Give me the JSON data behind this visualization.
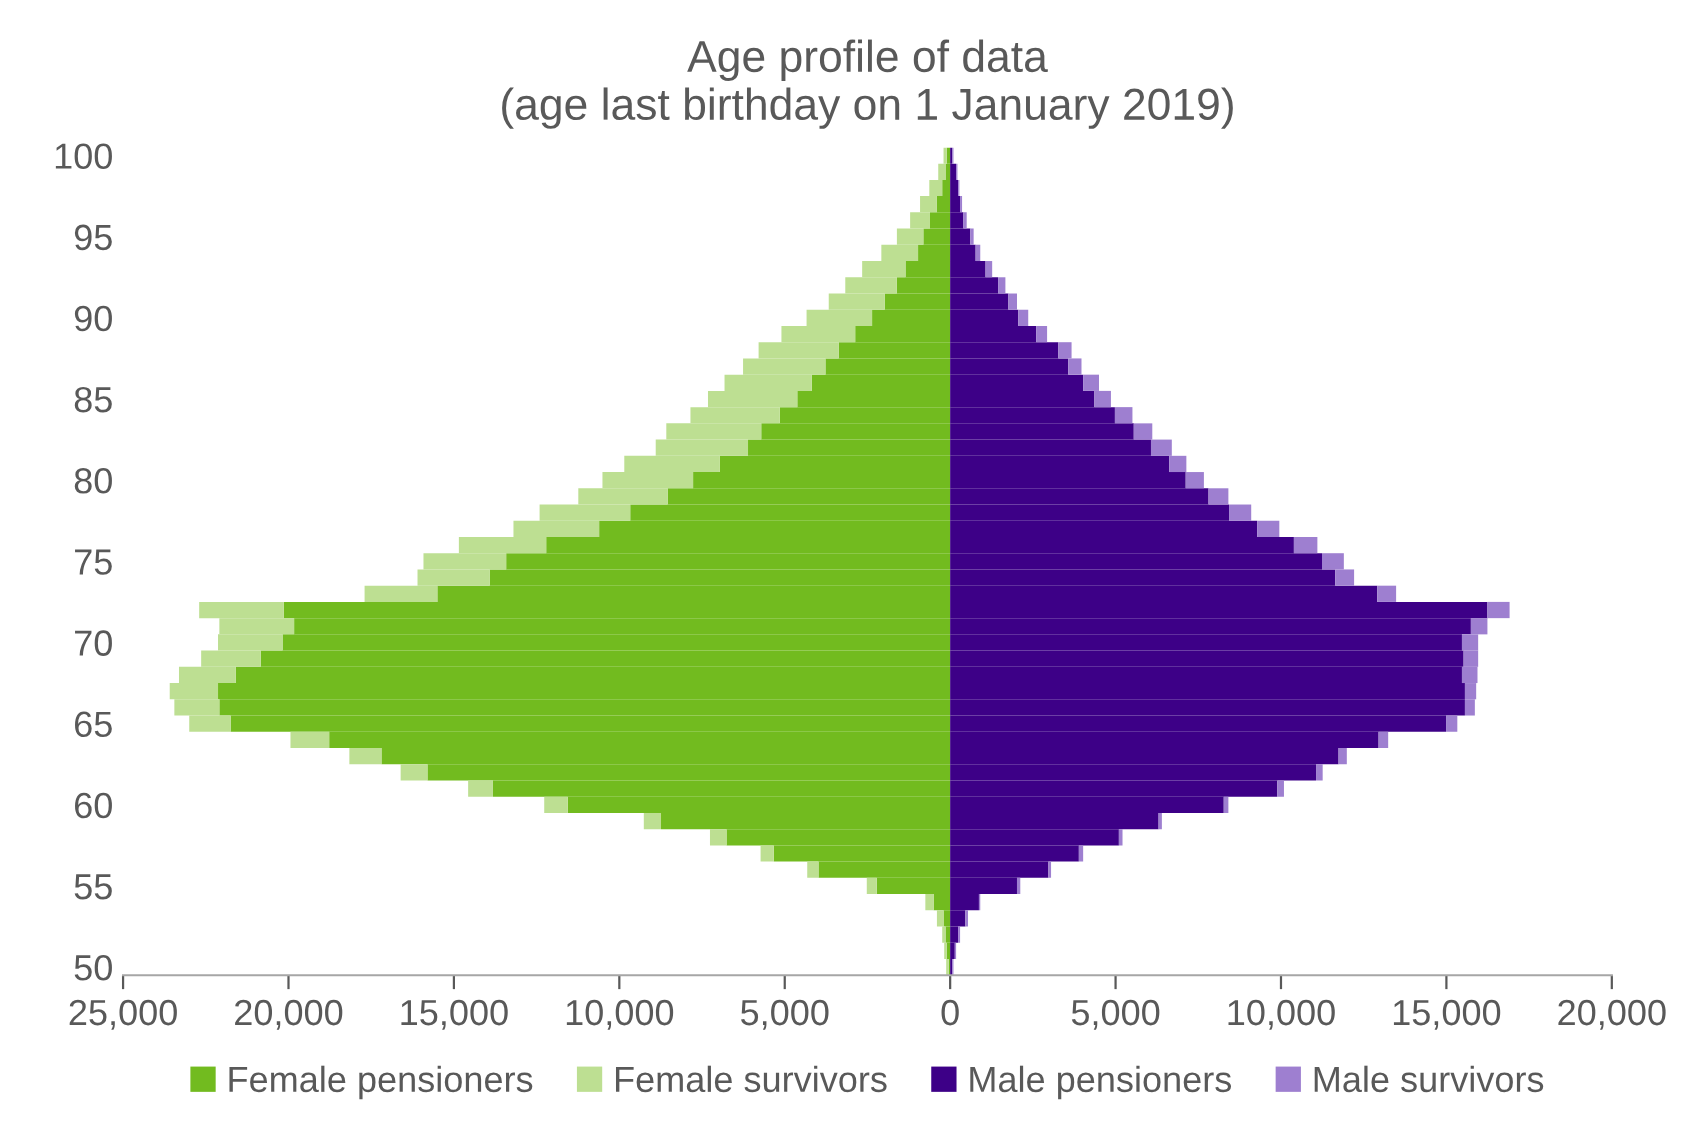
{
  "chart_data": {
    "type": "bar",
    "title": "Age profile of data\n(age last birthday on 1 January 2019)",
    "orientation": "horizontal",
    "stacked": true,
    "categories": [
      "100",
      null,
      null,
      null,
      null,
      "95",
      null,
      null,
      null,
      null,
      "90",
      null,
      null,
      null,
      null,
      "85",
      null,
      null,
      null,
      null,
      "80",
      null,
      null,
      null,
      null,
      "75",
      null,
      null,
      null,
      null,
      "70",
      null,
      null,
      null,
      null,
      "65",
      null,
      null,
      null,
      null,
      "60",
      null,
      null,
      null,
      null,
      "55",
      null,
      null,
      null,
      null,
      "50"
    ],
    "series": [
      {
        "name": "Female pensioners",
        "color": "#72bb1f",
        "values": [
          -100,
          -140,
          -240,
          -400,
          -610,
          -810,
          -970,
          -1350,
          -1610,
          -1980,
          -2360,
          -2870,
          -3370,
          -3770,
          -4180,
          -4620,
          -5150,
          -5710,
          -6110,
          -6960,
          -7770,
          -8540,
          -9670,
          -10610,
          -12210,
          -13420,
          -13920,
          -15500,
          -20140,
          -19830,
          -20180,
          -20840,
          -21590,
          -22130,
          -22090,
          -21750,
          -18770,
          -17190,
          -15800,
          -13820,
          -11560,
          -8740,
          -6760,
          -5330,
          -3980,
          -2220,
          -500,
          -200,
          -140,
          -100,
          -40
        ]
      },
      {
        "name": "Female survivors",
        "color": "#bddf92",
        "values": [
          -100,
          -220,
          -390,
          -510,
          -600,
          -800,
          -1110,
          -1310,
          -1560,
          -1690,
          -1980,
          -2230,
          -2420,
          -2490,
          -2640,
          -2700,
          -2700,
          -2870,
          -2790,
          -2890,
          -2740,
          -2700,
          -2740,
          -2590,
          -2640,
          -2500,
          -2180,
          -2200,
          -2560,
          -2260,
          -1950,
          -1800,
          -1720,
          -1460,
          -1360,
          -1250,
          -1170,
          -970,
          -810,
          -750,
          -710,
          -520,
          -500,
          -400,
          -340,
          -300,
          -250,
          -200,
          -100,
          -80,
          -80
        ]
      },
      {
        "name": "Male pensioners",
        "color": "#3d0087",
        "values": [
          60,
          180,
          240,
          300,
          400,
          610,
          770,
          1070,
          1450,
          1760,
          2060,
          2600,
          3270,
          3570,
          4020,
          4360,
          4980,
          5550,
          6070,
          6620,
          7120,
          7810,
          8430,
          9280,
          10390,
          11240,
          11640,
          12910,
          16240,
          15740,
          15470,
          15520,
          15470,
          15560,
          15560,
          14990,
          12950,
          11740,
          11060,
          9890,
          8270,
          6300,
          5100,
          3890,
          2970,
          2020,
          870,
          460,
          240,
          140,
          60
        ]
      },
      {
        "name": "Male survivors",
        "color": "#9e7fd0",
        "values": [
          40,
          40,
          40,
          60,
          100,
          100,
          140,
          200,
          220,
          260,
          300,
          330,
          400,
          400,
          480,
          500,
          530,
          560,
          630,
          520,
          550,
          600,
          670,
          670,
          710,
          660,
          570,
          570,
          670,
          500,
          490,
          440,
          470,
          340,
          300,
          340,
          290,
          250,
          200,
          200,
          140,
          100,
          110,
          130,
          80,
          100,
          40,
          80,
          60,
          40,
          40
        ]
      }
    ],
    "xlim": [
      -25000,
      20000
    ],
    "xticks": [
      {
        "value": -25000,
        "label": "25,000"
      },
      {
        "value": -20000,
        "label": "20,000"
      },
      {
        "value": -15000,
        "label": "15,000"
      },
      {
        "value": -10000,
        "label": "10,000"
      },
      {
        "value": -5000,
        "label": "5,000"
      },
      0,
      {
        "value": 5000,
        "label": "5,000"
      },
      {
        "value": 10000,
        "label": "10,000"
      },
      {
        "value": 15000,
        "label": "15,000"
      },
      {
        "value": 20000,
        "label": "20,000"
      }
    ],
    "grid": false,
    "legend": "bottom"
  }
}
